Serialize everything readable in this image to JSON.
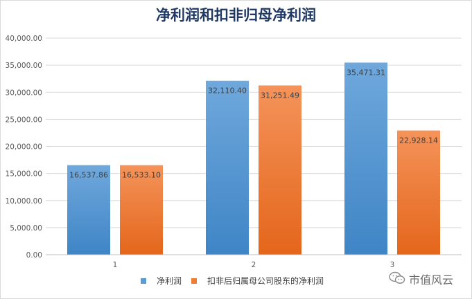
{
  "chart_data": {
    "type": "bar",
    "title": "净利润和扣非归母净利润",
    "categories": [
      "1",
      "2",
      "3"
    ],
    "series": [
      {
        "name": "净利润",
        "values": [
          16537.86,
          32110.4,
          35471.31
        ],
        "labels": [
          "16,537.86",
          "32,110.40",
          "35,471.31"
        ],
        "color": "#5b9bd5"
      },
      {
        "name": "扣非后归属母公司股东的净利润",
        "values": [
          16533.1,
          31251.49,
          22928.14
        ],
        "labels": [
          "16,533.10",
          "31,251.49",
          "22,928.14"
        ],
        "color": "#ed7d31"
      }
    ],
    "ylim": [
      0,
      40000
    ],
    "yticks": [
      0,
      5000,
      10000,
      15000,
      20000,
      25000,
      30000,
      35000,
      40000
    ],
    "ytick_labels": [
      "0.00",
      "5,000.00",
      "10,000.00",
      "15,000.00",
      "20,000.00",
      "25,000.00",
      "30,000.00",
      "35,000.00",
      "40,000.00"
    ],
    "grid": true,
    "legend": "bottom"
  },
  "watermark": {
    "text": "市值风云",
    "icon": "wechat-bubble-icon"
  }
}
